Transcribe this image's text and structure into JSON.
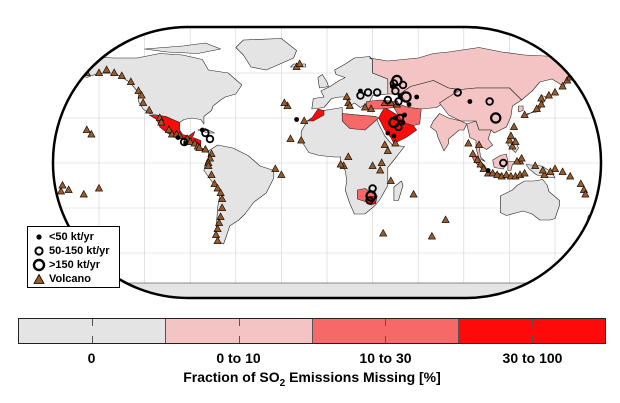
{
  "colors": {
    "bin_0": "#e4e4e4",
    "bin_0_10": "#f4c4c4",
    "bin_10_30": "#f76868",
    "bin_30_100": "#ff0a0a",
    "volcano": "#9a5a28",
    "ocean": "#ffffff"
  },
  "legend": {
    "small_label": "<50 kt/yr",
    "medium_label": "50-150 kt/yr",
    "large_label": ">150 kt/yr",
    "volcano_label": "Volcano"
  },
  "colorbar": {
    "bins": [
      "0",
      "0 to 10",
      "10 to 30",
      "30 to 100"
    ],
    "title_pre": "Fraction of SO",
    "title_sub": "2",
    "title_post": " Emissions Missing [%]"
  },
  "sources": [
    {
      "lon": 44,
      "lat": 53,
      "size": "medium"
    },
    {
      "lon": 46,
      "lat": 55,
      "size": "large"
    },
    {
      "lon": 43,
      "lat": 51,
      "size": "small"
    },
    {
      "lon": 50,
      "lat": 52,
      "size": "medium"
    },
    {
      "lon": 45,
      "lat": 48,
      "size": "medium"
    },
    {
      "lon": 48,
      "lat": 45,
      "size": "small"
    },
    {
      "lon": 52,
      "lat": 44,
      "size": "large"
    },
    {
      "lon": 47,
      "lat": 41,
      "size": "medium"
    },
    {
      "lon": 54,
      "lat": 39,
      "size": "small"
    },
    {
      "lon": 22,
      "lat": 48,
      "size": "small"
    },
    {
      "lon": 22,
      "lat": 45,
      "size": "medium"
    },
    {
      "lon": 27,
      "lat": 47,
      "size": "medium"
    },
    {
      "lon": 33,
      "lat": 47,
      "size": "medium"
    },
    {
      "lon": 40,
      "lat": 42,
      "size": "medium"
    },
    {
      "lon": 45,
      "lat": 30,
      "size": "small"
    },
    {
      "lon": 44,
      "lat": 27,
      "size": "large"
    },
    {
      "lon": 48,
      "lat": 30,
      "size": "medium"
    },
    {
      "lon": 50,
      "lat": 27,
      "size": "small"
    },
    {
      "lon": 47,
      "lat": 24,
      "size": "medium"
    },
    {
      "lon": 51,
      "lat": 32,
      "size": "small"
    },
    {
      "lon": 44,
      "lat": 18,
      "size": "small"
    },
    {
      "lon": 40,
      "lat": 20,
      "size": "small"
    },
    {
      "lon": 59,
      "lat": 44,
      "size": "small"
    },
    {
      "lon": 86,
      "lat": 47,
      "size": "medium"
    },
    {
      "lon": 94,
      "lat": 41,
      "size": "small"
    },
    {
      "lon": 107,
      "lat": 41,
      "size": "medium"
    },
    {
      "lon": 111,
      "lat": 30,
      "size": "large"
    },
    {
      "lon": 29,
      "lat": -22,
      "size": "large"
    },
    {
      "lon": 30,
      "lat": -17,
      "size": "medium"
    },
    {
      "lon": 28,
      "lat": -25,
      "size": "medium"
    },
    {
      "lon": -20,
      "lat": 29,
      "size": "small"
    },
    {
      "lon": -82,
      "lat": 22,
      "size": "small"
    },
    {
      "lon": -80,
      "lat": 20,
      "size": "medium"
    },
    {
      "lon": -77,
      "lat": 16,
      "size": "medium"
    },
    {
      "lon": -94,
      "lat": 14,
      "size": "medium"
    },
    {
      "lon": -98,
      "lat": 17,
      "size": "small"
    },
    {
      "lon": -93,
      "lat": 13,
      "size": "small"
    },
    {
      "lon": 116,
      "lat": 0,
      "size": "medium"
    },
    {
      "lon": 106,
      "lat": -5,
      "size": "small"
    }
  ],
  "volcanoes": [
    [
      -163,
      63
    ],
    [
      -158,
      60
    ],
    [
      -150,
      60
    ],
    [
      -145,
      62
    ],
    [
      -140,
      60
    ],
    [
      -135,
      58
    ],
    [
      -129,
      54
    ],
    [
      -124,
      48
    ],
    [
      -122,
      45
    ],
    [
      -121,
      40
    ],
    [
      -117,
      35
    ],
    [
      -110,
      30
    ],
    [
      -109,
      27
    ],
    [
      -104,
      22
    ],
    [
      -102,
      19
    ],
    [
      -99,
      19
    ],
    [
      -97,
      18
    ],
    [
      -92,
      16
    ],
    [
      -90,
      14
    ],
    [
      -87,
      13
    ],
    [
      -85,
      11
    ],
    [
      -84,
      10
    ],
    [
      -80,
      9
    ],
    [
      -76,
      6
    ],
    [
      -77,
      3
    ],
    [
      -78,
      0
    ],
    [
      -78,
      -2
    ],
    [
      -76,
      -8
    ],
    [
      -74,
      -14
    ],
    [
      -72,
      -17
    ],
    [
      -70,
      -20
    ],
    [
      -69,
      -24
    ],
    [
      -69,
      -30
    ],
    [
      -70,
      -36
    ],
    [
      -71,
      -40
    ],
    [
      -72,
      -44
    ],
    [
      -73,
      -48
    ],
    [
      -72,
      -52
    ],
    [
      -34,
      -4
    ],
    [
      -30,
      -8
    ],
    [
      -26,
      38
    ],
    [
      -28,
      40
    ],
    [
      -20,
      64
    ],
    [
      -18,
      66
    ],
    [
      -15,
      28
    ],
    [
      -17,
      15
    ],
    [
      -24,
      16
    ],
    [
      13,
      44
    ],
    [
      14,
      40
    ],
    [
      15,
      38
    ],
    [
      25,
      37
    ],
    [
      29,
      36
    ],
    [
      38,
      40
    ],
    [
      42,
      40
    ],
    [
      46,
      39
    ],
    [
      45,
      13
    ],
    [
      38,
      12
    ],
    [
      40,
      8
    ],
    [
      36,
      0
    ],
    [
      30,
      -2
    ],
    [
      35,
      -5
    ],
    [
      14,
      4
    ],
    [
      11,
      -2
    ],
    [
      9,
      -1
    ],
    [
      42,
      -12
    ],
    [
      57,
      -21
    ],
    [
      78,
      -38
    ],
    [
      69,
      -49
    ],
    [
      37,
      -47
    ],
    [
      96,
      6
    ],
    [
      99,
      2
    ],
    [
      101,
      -1
    ],
    [
      103,
      -4
    ],
    [
      106,
      -7
    ],
    [
      109,
      -7
    ],
    [
      112,
      -8
    ],
    [
      115,
      -9
    ],
    [
      118,
      -8
    ],
    [
      121,
      -9
    ],
    [
      124,
      -9
    ],
    [
      127,
      -8
    ],
    [
      130,
      -7
    ],
    [
      127,
      1
    ],
    [
      128,
      3
    ],
    [
      125,
      1
    ],
    [
      122,
      11
    ],
    [
      124,
      14
    ],
    [
      120,
      15
    ],
    [
      121,
      18
    ],
    [
      123,
      24
    ],
    [
      130,
      32
    ],
    [
      138,
      36
    ],
    [
      141,
      39
    ],
    [
      141,
      43
    ],
    [
      146,
      45
    ],
    [
      150,
      47
    ],
    [
      155,
      51
    ],
    [
      158,
      55
    ],
    [
      160,
      57
    ],
    [
      162,
      59
    ],
    [
      165,
      61
    ],
    [
      170,
      54
    ],
    [
      150,
      -4
    ],
    [
      147,
      -6
    ],
    [
      143,
      -8
    ],
    [
      155,
      -6
    ],
    [
      160,
      -9
    ],
    [
      167,
      -14
    ],
    [
      169,
      -18
    ],
    [
      170,
      -21
    ],
    [
      176,
      -38
    ],
    [
      177,
      -40
    ],
    [
      -175,
      -19
    ],
    [
      -174,
      -15
    ],
    [
      -170,
      -18
    ],
    [
      -160,
      -21
    ],
    [
      -155,
      19
    ],
    [
      -158,
      22
    ],
    [
      -150,
      -17
    ],
    [
      142,
      -5
    ],
    [
      100,
      12
    ],
    [
      93,
      13
    ],
    [
      137,
      -2
    ],
    [
      172,
      -44
    ]
  ]
}
